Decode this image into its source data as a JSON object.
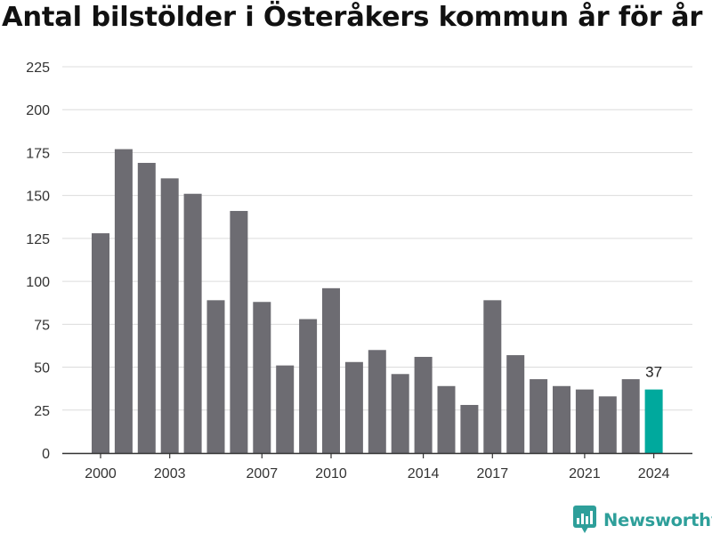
{
  "title": "Antal bilstölder i Österåkers kommun år för år",
  "brand": {
    "name": "Newsworthy",
    "icon": "newsworthy-logo-icon"
  },
  "colors": {
    "bar": "#6d6c72",
    "highlight": "#00a99d",
    "grid": "#dcdcdc",
    "axis": "#333333",
    "text": "#333333",
    "brand": "#2e9f9a"
  },
  "chart_data": {
    "type": "bar",
    "title": "Antal bilstölder i Österåkers kommun år för år",
    "xlabel": "",
    "ylabel": "",
    "categories": [
      2000,
      2001,
      2002,
      2003,
      2004,
      2005,
      2006,
      2007,
      2008,
      2009,
      2010,
      2011,
      2012,
      2013,
      2014,
      2015,
      2016,
      2017,
      2018,
      2019,
      2020,
      2021,
      2022,
      2023,
      2024
    ],
    "values": [
      128,
      177,
      169,
      160,
      151,
      89,
      141,
      88,
      51,
      78,
      96,
      53,
      60,
      46,
      56,
      39,
      28,
      89,
      57,
      43,
      39,
      37,
      33,
      43,
      37
    ],
    "highlight": {
      "category": 2024,
      "label": "37"
    },
    "ylim": [
      0,
      225
    ],
    "yticks": [
      0,
      25,
      50,
      75,
      100,
      125,
      150,
      175,
      200,
      225
    ],
    "xtick_labels": [
      "2000",
      "2003",
      "2007",
      "2010",
      "2014",
      "2017",
      "2021",
      "2024"
    ],
    "grid": true,
    "legend": "none"
  }
}
